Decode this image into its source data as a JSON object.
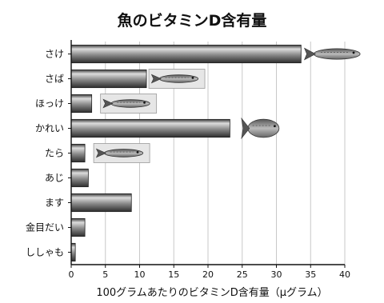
{
  "chart_data": {
    "type": "bar",
    "orientation": "horizontal",
    "title": "魚のビタミンD含有量",
    "xlabel": "100グラムあたりのビタミンD含有量（μグラム）",
    "ylabel": "",
    "categories": [
      "さけ",
      "さば",
      "ほっけ",
      "かれい",
      "たら",
      "あじ",
      "ます",
      "金目だい",
      "ししゃも"
    ],
    "values": [
      33.6,
      11.0,
      3.0,
      23.2,
      2.0,
      2.5,
      8.8,
      2.0,
      0.6
    ],
    "xlim": [
      0,
      40
    ],
    "xticks": [
      0,
      5,
      10,
      15,
      20,
      25,
      30,
      35,
      40
    ],
    "grid": "vertical",
    "legend": "none",
    "colors": {
      "bar_light": "#dcdcdc",
      "bar_mid": "#8a8a8a",
      "bar_dark": "#3a3a3a",
      "grid": "#c8c8c8",
      "axis": "#111111"
    },
    "fish_icons": [
      {
        "category": "さけ",
        "icon": "salmon-fish-icon"
      },
      {
        "category": "さば",
        "icon": "mackerel-fish-icon"
      },
      {
        "category": "ほっけ",
        "icon": "atka-mackerel-fish-icon"
      },
      {
        "category": "かれい",
        "icon": "flounder-fish-icon"
      },
      {
        "category": "たら",
        "icon": "cod-fish-icon"
      }
    ]
  }
}
